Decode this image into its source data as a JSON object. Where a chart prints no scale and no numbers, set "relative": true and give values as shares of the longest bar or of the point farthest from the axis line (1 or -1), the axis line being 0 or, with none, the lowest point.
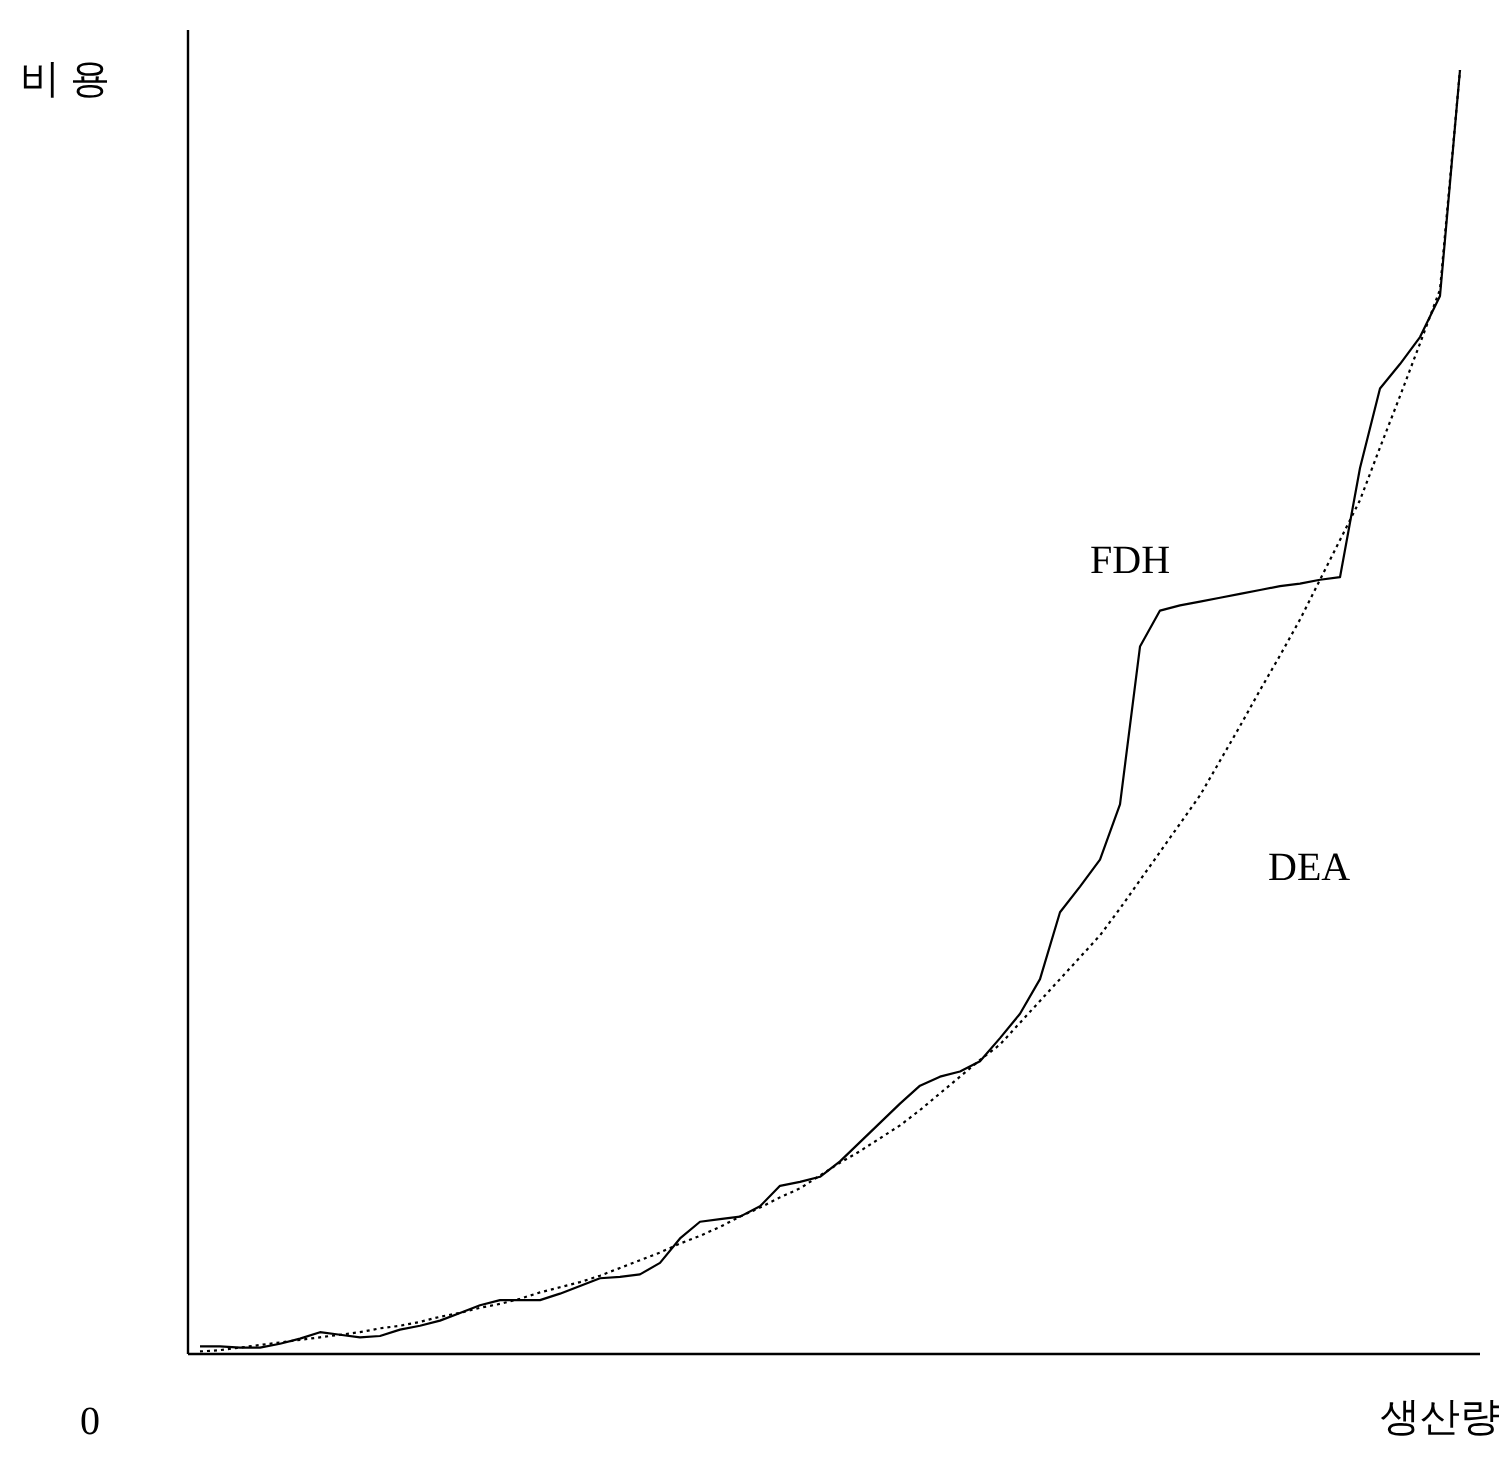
{
  "chart_data": {
    "type": "line",
    "relative": true,
    "xlabel": "생산량",
    "ylabel": "비 용",
    "annotations": [
      "0"
    ],
    "categories": [
      null,
      null,
      null,
      null,
      null,
      null,
      null,
      null,
      null,
      null,
      null,
      null,
      null,
      null,
      null,
      null,
      null,
      null,
      null,
      null,
      null,
      null,
      null,
      null,
      null,
      null,
      null,
      null,
      null,
      null,
      null,
      null,
      null,
      null,
      null,
      null,
      null,
      null,
      null,
      null,
      null,
      null,
      null,
      null,
      null,
      null,
      null,
      null,
      null,
      null,
      null,
      null,
      null,
      null,
      null,
      null,
      null,
      null,
      null,
      null,
      null,
      null,
      null,
      null
    ],
    "series": [
      {
        "name": "FDH",
        "color": "#000000",
        "line_style": "solid",
        "values": [
          0.006,
          0.006,
          0.005,
          0.005,
          0.008,
          0.012,
          0.017,
          0.015,
          0.013,
          0.014,
          0.019,
          0.022,
          0.026,
          0.032,
          0.038,
          0.042,
          0.042,
          0.042,
          0.047,
          0.053,
          0.059,
          0.06,
          0.062,
          0.071,
          0.09,
          0.103,
          0.105,
          0.107,
          0.115,
          0.131,
          0.134,
          0.138,
          0.15,
          0.165,
          0.18,
          0.195,
          0.209,
          0.216,
          0.22,
          0.228,
          0.246,
          0.265,
          0.292,
          0.344,
          0.364,
          0.385,
          0.428,
          0.551,
          0.579,
          0.583,
          0.586,
          0.589,
          0.592,
          0.595,
          0.598,
          0.6,
          0.603,
          0.605,
          0.69,
          0.752,
          0.771,
          0.792,
          0.824,
          1.0
        ]
      },
      {
        "name": "DEA",
        "color": "#000000",
        "line_style": "dotted",
        "values": [
          0.002,
          0.003,
          0.005,
          0.007,
          0.009,
          0.011,
          0.013,
          0.015,
          0.017,
          0.02,
          0.022,
          0.025,
          0.029,
          0.032,
          0.036,
          0.039,
          0.043,
          0.048,
          0.052,
          0.056,
          0.061,
          0.067,
          0.073,
          0.079,
          0.086,
          0.092,
          0.099,
          0.107,
          0.114,
          0.122,
          0.129,
          0.139,
          0.149,
          0.158,
          0.168,
          0.178,
          0.19,
          0.203,
          0.216,
          0.229,
          0.241,
          0.258,
          0.275,
          0.292,
          0.309,
          0.326,
          0.347,
          0.369,
          0.391,
          0.413,
          0.435,
          0.462,
          0.489,
          0.517,
          0.544,
          0.572,
          0.603,
          0.634,
          0.665,
          0.706,
          0.746,
          0.787,
          0.829,
          1.0
        ]
      }
    ]
  }
}
